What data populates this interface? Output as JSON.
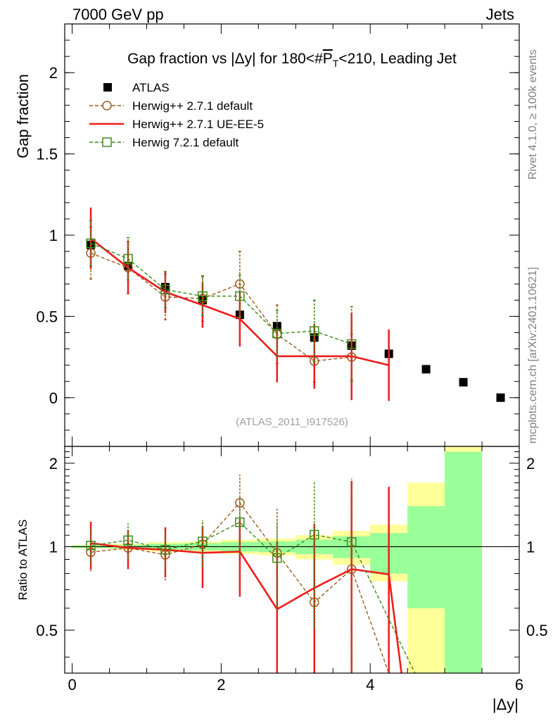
{
  "header": {
    "left": "7000 GeV pp",
    "right": "Jets"
  },
  "side_texts": {
    "rivet": "Rivet 4.1.0, ≥ 100k events",
    "mcplots": "mcplots.cern.ch [arXiv:2401.10621]"
  },
  "chart_data": [
    {
      "type": "scatter",
      "panel": "main",
      "title_parts": {
        "pre": "Gap fraction vs |Δy| for 180<#",
        "pt": "P",
        "sub": "T",
        "post": "<210, Leading Jet"
      },
      "watermark": "(ATLAS_2011_I917526)",
      "ylabel": "Gap fraction",
      "xlim": [
        -0.1,
        6.0
      ],
      "ylim": [
        -0.3,
        2.3
      ],
      "yticks": [
        0,
        0.5,
        1,
        1.5,
        2
      ],
      "ytick_labels": [
        "0",
        "0.5",
        "1",
        "1.5",
        "2"
      ],
      "legend": [
        {
          "label": "ATLAS",
          "color": "#000000",
          "style": "square"
        },
        {
          "label": "Herwig++ 2.7.1 default",
          "color": "#a0581a",
          "style": "circle-dashed"
        },
        {
          "label": "Herwig++ 2.7.1 UE-EE-5",
          "color": "#ee1c1c",
          "style": "solid"
        },
        {
          "label": "Herwig 7.2.1 default",
          "color": "#3a8c1a",
          "style": "square-dashed"
        }
      ],
      "series": [
        {
          "name": "ATLAS",
          "x": [
            0.25,
            0.75,
            1.25,
            1.75,
            2.25,
            2.75,
            3.25,
            3.75,
            4.25,
            4.75,
            5.25,
            5.75
          ],
          "y": [
            0.94,
            0.81,
            0.68,
            0.6,
            0.51,
            0.44,
            0.37,
            0.32,
            0.27,
            0.175,
            0.095,
            0.0
          ]
        },
        {
          "name": "Herwig++ 2.7.1 default",
          "x": [
            0.25,
            0.75,
            1.25,
            1.75,
            2.25,
            2.75,
            3.25,
            3.75
          ],
          "y": [
            0.89,
            0.8,
            0.62,
            0.61,
            0.7,
            0.39,
            0.225,
            0.25
          ],
          "err": [
            0.16,
            0.16,
            0.14,
            0.14,
            0.2,
            0.18,
            0.13,
            0.14
          ]
        },
        {
          "name": "Herwig++ 2.7.1 UE-EE-5",
          "x": [
            0.25,
            0.75,
            1.25,
            1.75,
            2.25,
            2.75,
            3.25,
            3.75,
            4.25
          ],
          "y": [
            0.98,
            0.8,
            0.65,
            0.57,
            0.485,
            0.255,
            0.255,
            0.255,
            0.2
          ],
          "err": [
            0.19,
            0.16,
            0.13,
            0.14,
            0.17,
            0.16,
            0.2,
            0.27,
            0.22
          ]
        },
        {
          "name": "Herwig 7.2.1 default",
          "x": [
            0.25,
            0.75,
            1.25,
            1.75,
            2.25,
            2.75,
            3.25,
            3.75
          ],
          "y": [
            0.95,
            0.855,
            0.665,
            0.625,
            0.625,
            0.395,
            0.41,
            0.33
          ],
          "err": [
            0.14,
            0.13,
            0.11,
            0.12,
            0.13,
            0.14,
            0.19,
            0.23
          ]
        }
      ]
    },
    {
      "type": "line",
      "panel": "ratio",
      "ylabel": "Ratio to ATLAS",
      "xlabel": "|Δy|",
      "xlim": [
        -0.1,
        6.0
      ],
      "ylim": [
        0.35,
        2.3
      ],
      "yticks": [
        0.5,
        1,
        2
      ],
      "ytick_labels": [
        "0.5",
        "1",
        "2"
      ],
      "xticks": [
        0,
        2,
        4,
        6
      ],
      "xtick_labels": [
        "0",
        "2",
        "4",
        "6"
      ],
      "bands": {
        "bins": [
          [
            0,
            0.5
          ],
          [
            0.5,
            1
          ],
          [
            1,
            1.5
          ],
          [
            1.5,
            2
          ],
          [
            2,
            2.5
          ],
          [
            2.5,
            3
          ],
          [
            3,
            3.5
          ],
          [
            3.5,
            4
          ],
          [
            4,
            4.5
          ],
          [
            4.5,
            5
          ],
          [
            5,
            5.5
          ]
        ],
        "yellow": [
          [
            0.985,
            1.015
          ],
          [
            0.975,
            1.025
          ],
          [
            0.96,
            1.04
          ],
          [
            0.955,
            1.045
          ],
          [
            0.94,
            1.06
          ],
          [
            0.93,
            1.07
          ],
          [
            0.9,
            1.1
          ],
          [
            0.86,
            1.14
          ],
          [
            0.75,
            1.2
          ],
          [
            0.3,
            1.7
          ],
          [
            0.3,
            2.3
          ]
        ],
        "green": [
          [
            0.99,
            1.01
          ],
          [
            0.985,
            1.015
          ],
          [
            0.975,
            1.025
          ],
          [
            0.97,
            1.03
          ],
          [
            0.96,
            1.04
          ],
          [
            0.955,
            1.045
          ],
          [
            0.94,
            1.06
          ],
          [
            0.91,
            1.09
          ],
          [
            0.8,
            1.12
          ],
          [
            0.6,
            1.4
          ],
          [
            0.3,
            2.2
          ]
        ]
      },
      "series": [
        {
          "name": "Herwig++ 2.7.1 default",
          "x": [
            0.25,
            0.75,
            1.25,
            1.75,
            2.25,
            2.75,
            3.25,
            3.75,
            4.25
          ],
          "y": [
            0.955,
            0.99,
            0.935,
            1.02,
            1.44,
            0.95,
            0.63,
            0.83,
            0.3
          ],
          "err": [
            0.14,
            0.15,
            0.18,
            0.22,
            0.38,
            0.42,
            0.3,
            0.9,
            0.0
          ]
        },
        {
          "name": "Herwig++ 2.7.1 UE-EE-5",
          "x": [
            0.25,
            0.75,
            1.25,
            1.75,
            2.25,
            2.75,
            3.25,
            3.75,
            4.25,
            4.42
          ],
          "y": [
            1.03,
            0.99,
            0.975,
            0.95,
            0.96,
            0.595,
            0.71,
            0.83,
            0.795,
            0.3
          ],
          "err": [
            0.2,
            0.16,
            0.2,
            0.24,
            0.3,
            0.45,
            0.5,
            0.9,
            0.85,
            0.0
          ]
        },
        {
          "name": "Herwig 7.2.1 default",
          "x": [
            0.25,
            0.75,
            1.25,
            1.75,
            2.25,
            2.75,
            3.25,
            3.75,
            4.6
          ],
          "y": [
            1.01,
            1.055,
            0.975,
            1.045,
            1.225,
            0.91,
            1.105,
            1.04,
            0.3
          ],
          "err": [
            0.15,
            0.16,
            0.17,
            0.2,
            0.3,
            0.32,
            0.6,
            0.72,
            0.0
          ]
        }
      ]
    }
  ]
}
